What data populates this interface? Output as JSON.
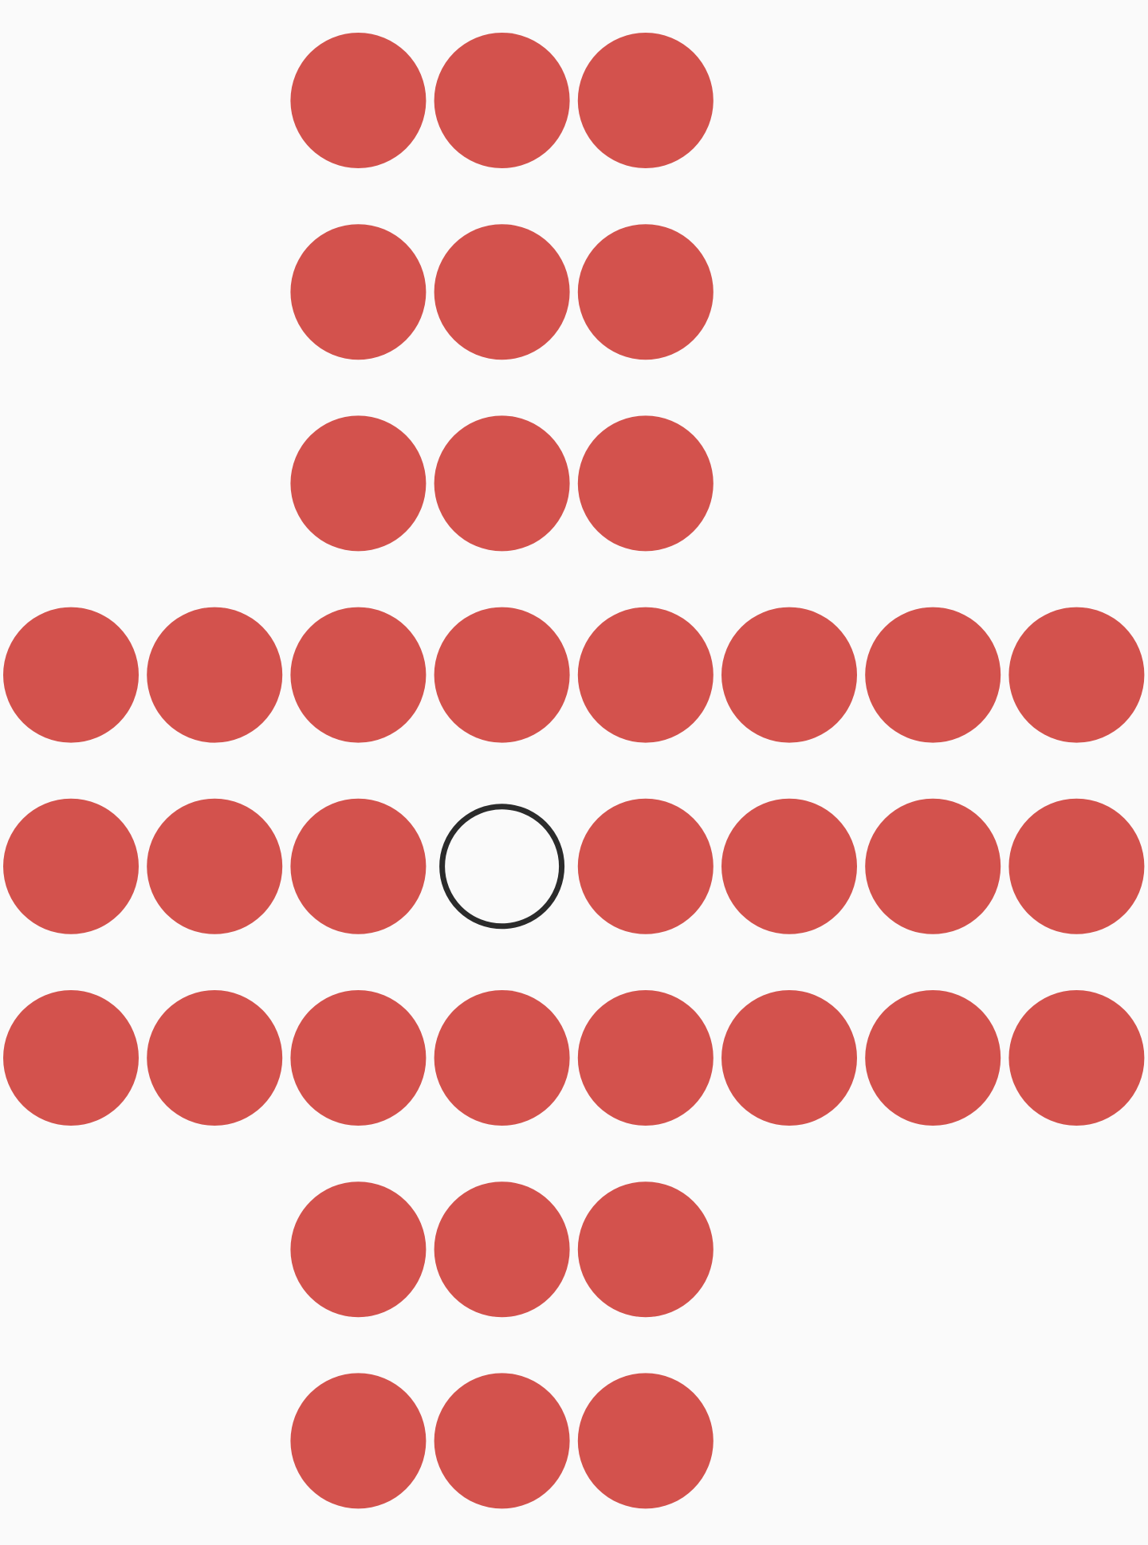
{
  "board": [
    [
      null,
      null,
      1,
      1,
      1,
      null,
      null,
      null
    ],
    [
      null,
      null,
      1,
      1,
      1,
      null,
      null,
      null
    ],
    [
      null,
      null,
      1,
      1,
      1,
      null,
      null,
      null
    ],
    [
      1,
      1,
      1,
      1,
      1,
      1,
      1,
      1
    ],
    [
      1,
      1,
      1,
      0,
      1,
      1,
      1,
      1
    ],
    [
      1,
      1,
      1,
      1,
      1,
      1,
      1,
      1
    ],
    [
      null,
      null,
      1,
      1,
      1,
      null,
      null,
      null
    ],
    [
      null,
      null,
      1,
      1,
      1,
      null,
      null,
      null
    ]
  ]
}
